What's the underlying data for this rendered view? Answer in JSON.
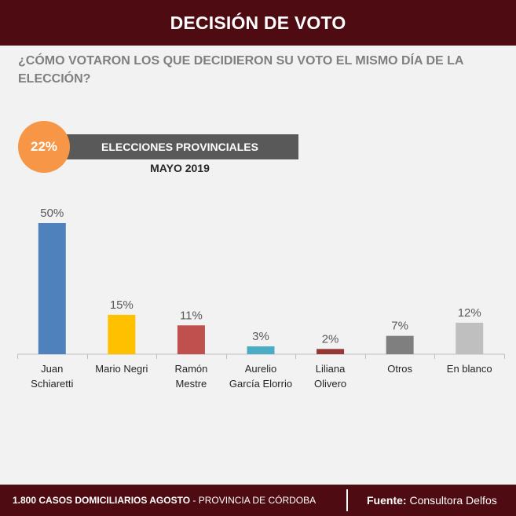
{
  "header": {
    "title": "DECISIÓN DE VOTO"
  },
  "question": "¿CÓMO VOTARON LOS QUE DECIDIERON SU VOTO EL MISMO DÍA DE LA ELECCIÓN?",
  "highlight": {
    "percent": "22%",
    "label": "ELECCIONES PROVINCIALES",
    "sublabel": "MAYO 2019"
  },
  "colors": {
    "header_bg": "#4f0b12",
    "circle": "#f79646",
    "banner": "#595959"
  },
  "chart_data": {
    "type": "bar",
    "categories": [
      [
        "Juan",
        "Schiaretti"
      ],
      [
        "Mario Negri"
      ],
      [
        "Ramón",
        "Mestre"
      ],
      [
        "Aurelio",
        "García Elorrio"
      ],
      [
        "Liliana",
        "Olivero"
      ],
      [
        "Otros"
      ],
      [
        "En blanco"
      ]
    ],
    "values": [
      50,
      15,
      11,
      3,
      2,
      7,
      12
    ],
    "value_labels": [
      "50%",
      "15%",
      "11%",
      "3%",
      "2%",
      "7%",
      "12%"
    ],
    "colors": [
      "#4f81bd",
      "#ffc000",
      "#c0504d",
      "#4bacc6",
      "#953735",
      "#7f7f7f",
      "#bfbfbf"
    ],
    "ylim": [
      0,
      50
    ]
  },
  "footer": {
    "sample": "1.800",
    "sample_text": "CASOS DOMICILIARIOS AGOSTO",
    "separator": "-",
    "region": "PROVINCIA DE CÓRDOBA",
    "source_label": "Fuente:",
    "source": "Consultora Delfos"
  }
}
